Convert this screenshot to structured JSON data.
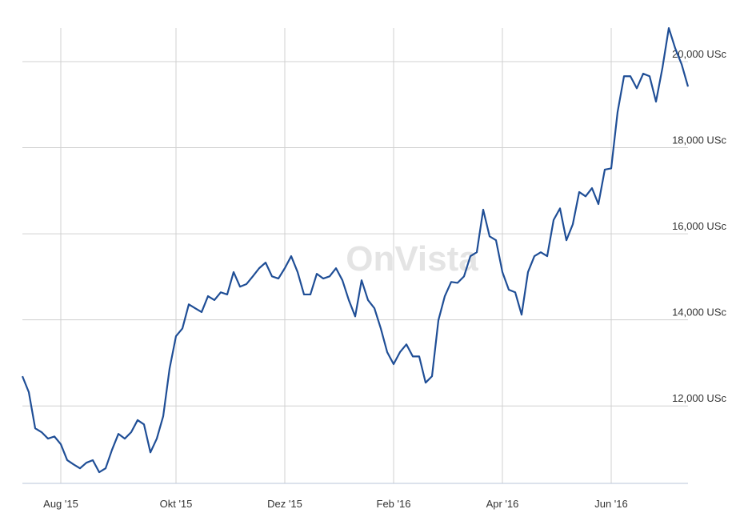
{
  "chart_data": {
    "type": "line",
    "watermark": "OnVista",
    "categories": [
      null,
      null,
      null,
      null,
      null,
      null,
      "Aug '15",
      null,
      null,
      null,
      null,
      null,
      null,
      null,
      null,
      null,
      null,
      null,
      null,
      null,
      null,
      null,
      null,
      null,
      "Okt '15",
      null,
      null,
      null,
      null,
      null,
      null,
      null,
      null,
      null,
      null,
      null,
      null,
      null,
      null,
      null,
      null,
      "Dez '15",
      null,
      null,
      null,
      null,
      null,
      null,
      null,
      null,
      null,
      null,
      null,
      null,
      null,
      null,
      null,
      null,
      "Feb '16",
      null,
      null,
      null,
      null,
      null,
      null,
      null,
      null,
      null,
      null,
      null,
      null,
      null,
      null,
      null,
      null,
      "Apr '16",
      null,
      null,
      null,
      null,
      null,
      null,
      null,
      null,
      null,
      null,
      null,
      null,
      null,
      null,
      null,
      null,
      "Jun '16",
      null,
      null,
      null,
      null,
      null,
      null,
      null,
      null,
      null,
      null,
      null,
      null
    ],
    "series": [
      {
        "color": "#1f4e96",
        "values": [
          12690,
          12320,
          11480,
          11390,
          11240,
          11290,
          11110,
          10740,
          10640,
          10550,
          10680,
          10740,
          10460,
          10550,
          10980,
          11350,
          11240,
          11390,
          11670,
          11570,
          10920,
          11240,
          11760,
          12870,
          13620,
          13800,
          14360,
          14270,
          14180,
          14550,
          14460,
          14640,
          14590,
          15110,
          14770,
          14830,
          15010,
          15200,
          15330,
          15010,
          14960,
          15200,
          15480,
          15110,
          14590,
          14590,
          15070,
          14960,
          15010,
          15200,
          14920,
          14460,
          14080,
          14920,
          14460,
          14270,
          13800,
          13250,
          12970,
          13250,
          13430,
          13150,
          13150,
          12540,
          12690,
          13990,
          14550,
          14880,
          14860,
          15010,
          15480,
          15570,
          16560,
          15940,
          15850,
          15110,
          14700,
          14640,
          14120,
          15110,
          15480,
          15570,
          15480,
          16320,
          16590,
          15850,
          16220,
          16970,
          16870,
          17060,
          16690,
          17490,
          17520,
          18830,
          19660,
          19660,
          19380,
          19720,
          19660,
          19070,
          19850,
          20780,
          20310,
          19940,
          19420
        ]
      }
    ],
    "ylim": [
      10200,
      20900
    ],
    "yticks": [
      {
        "value": 12000,
        "label": "12,000 USc"
      },
      {
        "value": 14000,
        "label": "14,000 USc"
      },
      {
        "value": 16000,
        "label": "16,000 USc"
      },
      {
        "value": 18000,
        "label": "18,000 USc"
      },
      {
        "value": 20000,
        "label": "20,000 USc"
      }
    ],
    "grid": true
  }
}
